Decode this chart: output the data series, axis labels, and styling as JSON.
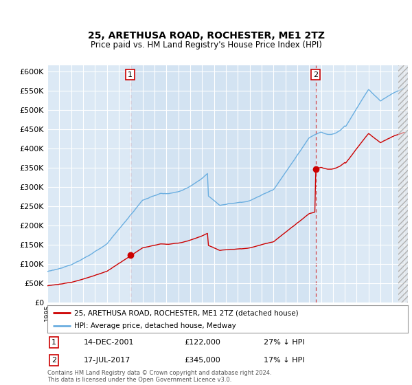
{
  "title": "25, ARETHUSA ROAD, ROCHESTER, ME1 2TZ",
  "subtitle": "Price paid vs. HM Land Registry's House Price Index (HPI)",
  "yticks": [
    0,
    50000,
    100000,
    150000,
    200000,
    250000,
    300000,
    350000,
    400000,
    450000,
    500000,
    550000,
    600000
  ],
  "ylim": [
    0,
    615000
  ],
  "sale1_date": "14-DEC-2001",
  "sale1_price": 122000,
  "sale1_label": "27% ↓ HPI",
  "sale1_x": 2001.96,
  "sale2_date": "17-JUL-2017",
  "sale2_price": 345000,
  "sale2_label": "17% ↓ HPI",
  "sale2_x": 2017.54,
  "legend_house": "25, ARETHUSA ROAD, ROCHESTER, ME1 2TZ (detached house)",
  "legend_hpi": "HPI: Average price, detached house, Medway",
  "footer": "Contains HM Land Registry data © Crown copyright and database right 2024.\nThis data is licensed under the Open Government Licence v3.0.",
  "hpi_color": "#6aaee0",
  "house_color": "#cc0000",
  "bg_plot": "#dce9f5",
  "bg_shade": "#ccdff0",
  "grid_color": "#ffffff",
  "hatch_color": "#b0b0b0"
}
